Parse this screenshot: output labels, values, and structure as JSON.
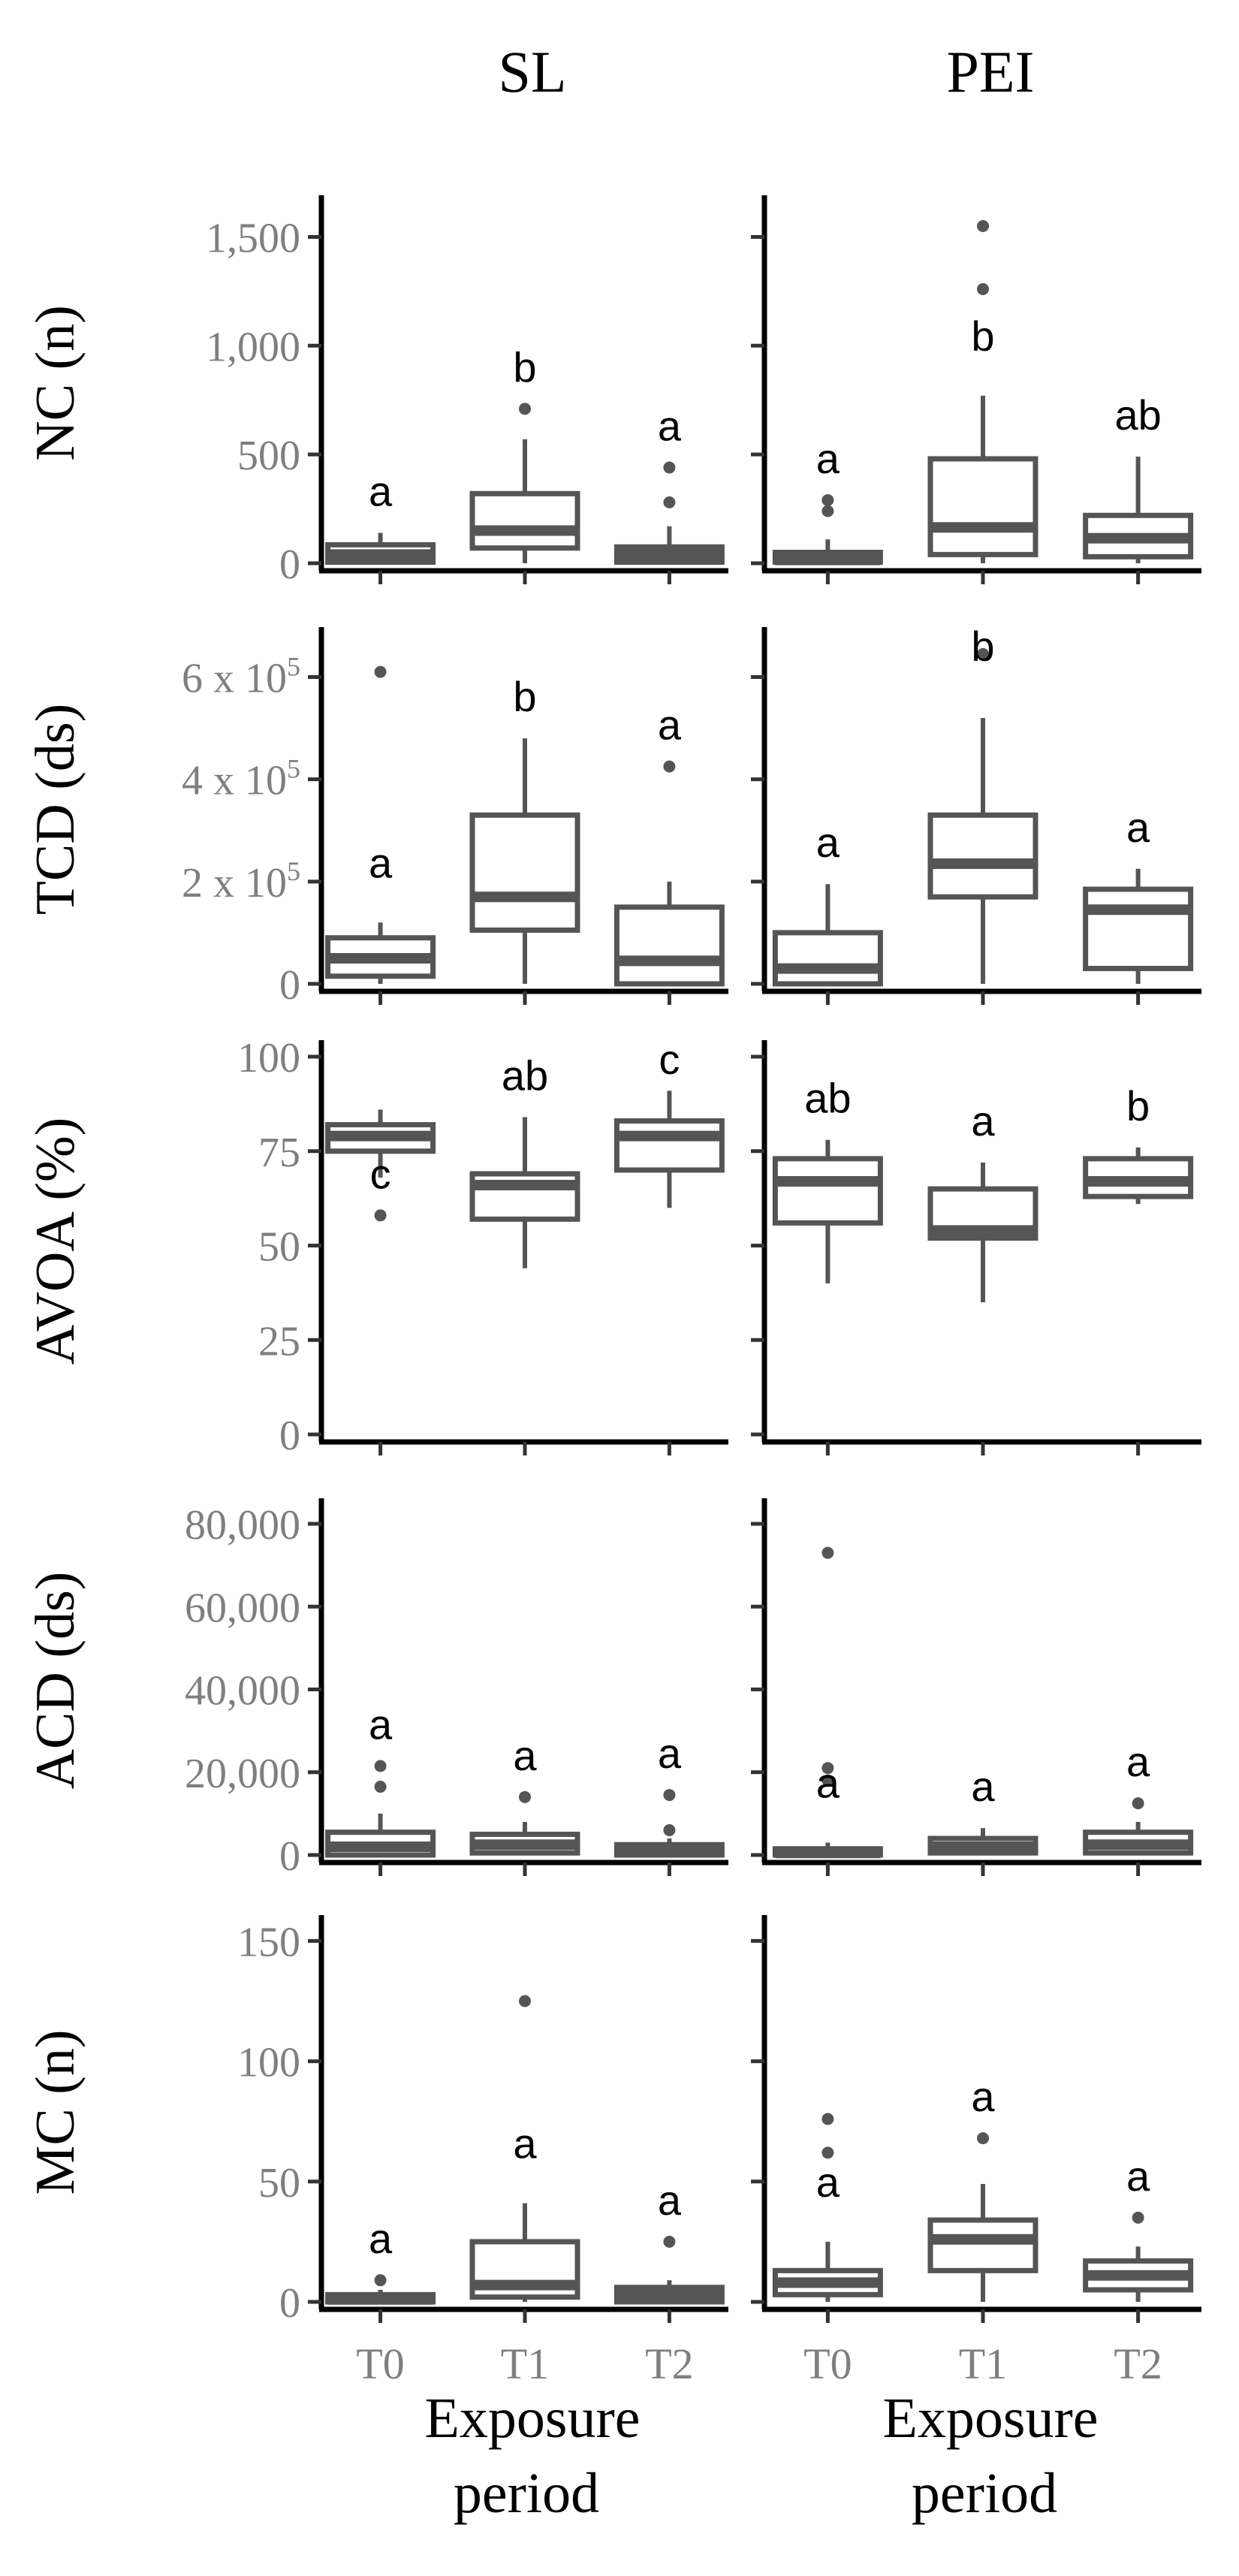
{
  "column_titles": [
    "SL",
    "PEI"
  ],
  "x_categories": [
    "T0",
    "T1",
    "T2"
  ],
  "x_label": "Exposure period",
  "chart_data": {
    "type": "boxplot",
    "columns": [
      "SL",
      "PEI"
    ],
    "categories": [
      "T0",
      "T1",
      "T2"
    ],
    "xlabel": "Exposure period",
    "panels": [
      {
        "id": "NC",
        "ylabel": "NC (n)",
        "ylim": [
          0,
          1650
        ],
        "yticks": [
          0,
          500,
          1000,
          1500
        ],
        "yticklabels": [
          "0",
          "500",
          "1,000",
          "1,500"
        ],
        "groups": {
          "SL": [
            {
              "cat": "T0",
              "min": 0,
              "q1": 5,
              "median": 40,
              "q3": 85,
              "max": 140,
              "outliers": [],
              "label": "a"
            },
            {
              "cat": "T1",
              "min": 0,
              "q1": 70,
              "median": 150,
              "q3": 320,
              "max": 570,
              "outliers": [
                710
              ],
              "label": "b"
            },
            {
              "cat": "T2",
              "min": 0,
              "q1": 5,
              "median": 40,
              "q3": 75,
              "max": 170,
              "outliers": [
                280,
                440
              ],
              "label": "a"
            }
          ],
          "PEI": [
            {
              "cat": "T0",
              "min": 0,
              "q1": 5,
              "median": 15,
              "q3": 50,
              "max": 110,
              "outliers": [
                240,
                290
              ],
              "label": "a"
            },
            {
              "cat": "T1",
              "min": 0,
              "q1": 40,
              "median": 165,
              "q3": 480,
              "max": 770,
              "outliers": [
                1260,
                1550
              ],
              "label": "b"
            },
            {
              "cat": "T2",
              "min": 0,
              "q1": 30,
              "median": 115,
              "q3": 220,
              "max": 490,
              "outliers": [],
              "label": "ab"
            }
          ]
        }
      },
      {
        "id": "TCD",
        "ylabel": "TCD (ds)",
        "ylim": [
          0,
          680000
        ],
        "yticks": [
          0,
          200000,
          400000,
          600000
        ],
        "yticklabels": [
          "0",
          "2 x 10^5",
          "4 x 10^5",
          "6 x 10^5"
        ],
        "groups": {
          "SL": [
            {
              "cat": "T0",
              "min": 0,
              "q1": 15000,
              "median": 50000,
              "q3": 90000,
              "max": 120000,
              "outliers": [
                610000
              ],
              "label": "a"
            },
            {
              "cat": "T1",
              "min": 0,
              "q1": 105000,
              "median": 170000,
              "q3": 330000,
              "max": 480000,
              "outliers": [],
              "label": "b"
            },
            {
              "cat": "T2",
              "min": 0,
              "q1": 0,
              "median": 45000,
              "q3": 150000,
              "max": 200000,
              "outliers": [
                425000
              ],
              "label": "a"
            }
          ],
          "PEI": [
            {
              "cat": "T0",
              "min": 0,
              "q1": 0,
              "median": 30000,
              "q3": 100000,
              "max": 195000,
              "outliers": [],
              "label": "a"
            },
            {
              "cat": "T1",
              "min": 0,
              "q1": 170000,
              "median": 235000,
              "q3": 330000,
              "max": 520000,
              "outliers": [
                645000
              ],
              "label": "b"
            },
            {
              "cat": "T2",
              "min": 0,
              "q1": 30000,
              "median": 145000,
              "q3": 185000,
              "max": 225000,
              "outliers": [],
              "label": "a"
            }
          ]
        }
      },
      {
        "id": "AVOA",
        "ylabel": "AVOA (%)",
        "ylim": [
          0,
          102
        ],
        "yticks": [
          0,
          25,
          50,
          75,
          100
        ],
        "yticklabels": [
          "0",
          "25",
          "50",
          "75",
          "100"
        ],
        "groups": {
          "SL": [
            {
              "cat": "T0",
              "min": 68,
              "q1": 75,
              "median": 79,
              "q3": 82,
              "max": 86,
              "outliers": [
                58
              ],
              "label": "c"
            },
            {
              "cat": "T1",
              "min": 44,
              "q1": 57,
              "median": 66,
              "q3": 69,
              "max": 84,
              "outliers": [],
              "label": "ab"
            },
            {
              "cat": "T2",
              "min": 60,
              "q1": 70,
              "median": 79,
              "q3": 83,
              "max": 91,
              "outliers": [],
              "label": "c"
            }
          ],
          "PEI": [
            {
              "cat": "T0",
              "min": 40,
              "q1": 56,
              "median": 67,
              "q3": 73,
              "max": 78,
              "outliers": [],
              "label": "ab"
            },
            {
              "cat": "T1",
              "min": 35,
              "q1": 52,
              "median": 54,
              "q3": 65,
              "max": 72,
              "outliers": [],
              "label": "a"
            },
            {
              "cat": "T2",
              "min": 61,
              "q1": 63,
              "median": 67,
              "q3": 73,
              "max": 76,
              "outliers": [],
              "label": "b"
            }
          ]
        }
      },
      {
        "id": "ACD",
        "ylabel": "ACD (ds)",
        "ylim": [
          0,
          84000
        ],
        "yticks": [
          0,
          20000,
          40000,
          60000,
          80000
        ],
        "yticklabels": [
          "0",
          "20,000",
          "40,000",
          "60,000",
          "80,000"
        ],
        "groups": {
          "SL": [
            {
              "cat": "T0",
              "min": 0,
              "q1": 0,
              "median": 2000,
              "q3": 5500,
              "max": 10000,
              "outliers": [
                16500,
                21500
              ],
              "label": "a"
            },
            {
              "cat": "T1",
              "min": 0,
              "q1": 500,
              "median": 2500,
              "q3": 5000,
              "max": 8000,
              "outliers": [
                14000
              ],
              "label": "a"
            },
            {
              "cat": "T2",
              "min": 0,
              "q1": 0,
              "median": 1000,
              "q3": 2500,
              "max": 4000,
              "outliers": [
                6000,
                14500
              ],
              "label": "a"
            }
          ],
          "PEI": [
            {
              "cat": "T0",
              "min": 0,
              "q1": 0,
              "median": 500,
              "q3": 1500,
              "max": 3000,
              "outliers": [
                18000,
                21000,
                73000
              ],
              "label": "a"
            },
            {
              "cat": "T1",
              "min": 0,
              "q1": 500,
              "median": 2000,
              "q3": 4000,
              "max": 6500,
              "outliers": [],
              "label": "a"
            },
            {
              "cat": "T2",
              "min": 0,
              "q1": 500,
              "median": 2500,
              "q3": 5500,
              "max": 8000,
              "outliers": [
                12500
              ],
              "label": "a"
            }
          ]
        }
      },
      {
        "id": "MC",
        "ylabel": "MC (n)",
        "ylim": [
          0,
          157
        ],
        "yticks": [
          0,
          50,
          100,
          150
        ],
        "yticklabels": [
          "0",
          "50",
          "100",
          "150"
        ],
        "groups": {
          "SL": [
            {
              "cat": "T0",
              "min": 0,
              "q1": 0,
              "median": 1,
              "q3": 3,
              "max": 5,
              "outliers": [
                9
              ],
              "label": "a"
            },
            {
              "cat": "T1",
              "min": 0,
              "q1": 2,
              "median": 7,
              "q3": 25,
              "max": 41,
              "outliers": [
                125
              ],
              "label": "a"
            },
            {
              "cat": "T2",
              "min": 0,
              "q1": 0,
              "median": 3,
              "q3": 6,
              "max": 9,
              "outliers": [
                25
              ],
              "label": "a"
            }
          ],
          "PEI": [
            {
              "cat": "T0",
              "min": 0,
              "q1": 3,
              "median": 8,
              "q3": 13,
              "max": 25,
              "outliers": [
                62,
                76
              ],
              "label": "a"
            },
            {
              "cat": "T1",
              "min": 0,
              "q1": 13,
              "median": 26,
              "q3": 34,
              "max": 49,
              "outliers": [
                68
              ],
              "label": "a"
            },
            {
              "cat": "T2",
              "min": 0,
              "q1": 5,
              "median": 11,
              "q3": 17,
              "max": 23,
              "outliers": [
                35
              ],
              "label": "a"
            }
          ]
        }
      }
    ]
  }
}
